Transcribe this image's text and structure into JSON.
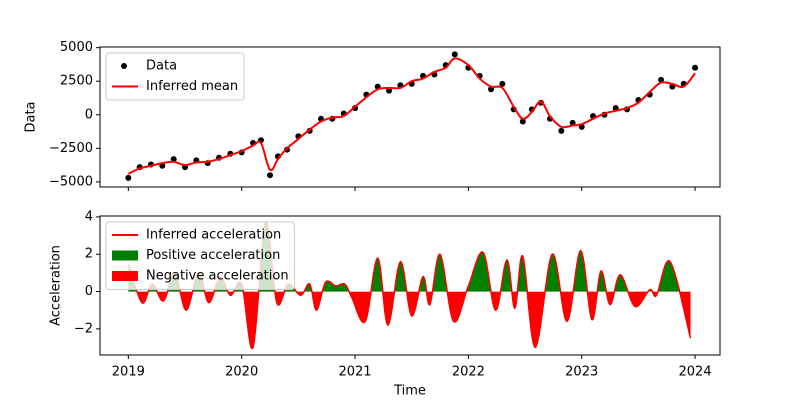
{
  "chart_data": [
    {
      "type": "line",
      "ylabel": "Data",
      "xlim": [
        2018.75,
        2024.22
      ],
      "xticks": [
        2019,
        2020,
        2021,
        2022,
        2023,
        2024
      ],
      "ylim": [
        -5380,
        5050
      ],
      "yticks": [
        5000,
        2500,
        0,
        {
          "value": -2500,
          "label": "−2500"
        },
        {
          "value": -5000,
          "label": "−5000"
        }
      ],
      "legend": "upper left",
      "series": [
        {
          "name": "Data",
          "color": "black",
          "mode": "markers",
          "x": [
            2019.0,
            2019.1,
            2019.2,
            2019.3,
            2019.4,
            2019.5,
            2019.6,
            2019.7,
            2019.8,
            2019.9,
            2020.0,
            2020.1,
            2020.17,
            2020.25,
            2020.32,
            2020.4,
            2020.5,
            2020.6,
            2020.7,
            2020.8,
            2020.9,
            2021.0,
            2021.1,
            2021.2,
            2021.3,
            2021.4,
            2021.5,
            2021.6,
            2021.7,
            2021.8,
            2021.88,
            2022.0,
            2022.1,
            2022.2,
            2022.3,
            2022.4,
            2022.48,
            2022.56,
            2022.64,
            2022.72,
            2022.82,
            2022.92,
            2023.0,
            2023.1,
            2023.2,
            2023.3,
            2023.4,
            2023.5,
            2023.6,
            2023.7,
            2023.8,
            2023.9,
            2024.0
          ],
          "values": [
            -4700,
            -3900,
            -3700,
            -3800,
            -3300,
            -3900,
            -3400,
            -3600,
            -3200,
            -2900,
            -2800,
            -2100,
            -1900,
            -4500,
            -3100,
            -2600,
            -1600,
            -1200,
            -300,
            -300,
            100,
            500,
            1500,
            2100,
            1800,
            2200,
            2300,
            2900,
            3000,
            3700,
            4500,
            3500,
            2900,
            1900,
            2300,
            400,
            -500,
            400,
            900,
            -300,
            -1200,
            -600,
            -900,
            -100,
            0,
            500,
            400,
            1100,
            1500,
            2600,
            2100,
            2300,
            3500
          ]
        },
        {
          "name": "Inferred mean",
          "color": "red",
          "mode": "line",
          "x": [
            2019.0,
            2019.1,
            2019.2,
            2019.3,
            2019.4,
            2019.5,
            2019.6,
            2019.7,
            2019.8,
            2019.9,
            2020.0,
            2020.1,
            2020.17,
            2020.25,
            2020.32,
            2020.4,
            2020.5,
            2020.6,
            2020.7,
            2020.8,
            2020.9,
            2021.0,
            2021.1,
            2021.2,
            2021.3,
            2021.4,
            2021.5,
            2021.6,
            2021.7,
            2021.8,
            2021.88,
            2022.0,
            2022.1,
            2022.2,
            2022.3,
            2022.4,
            2022.48,
            2022.56,
            2022.64,
            2022.72,
            2022.82,
            2022.92,
            2023.0,
            2023.1,
            2023.2,
            2023.3,
            2023.4,
            2023.5,
            2023.6,
            2023.7,
            2023.8,
            2023.9,
            2024.0
          ],
          "values": [
            -4400,
            -4000,
            -3800,
            -3600,
            -3500,
            -3750,
            -3550,
            -3500,
            -3300,
            -3000,
            -2700,
            -2300,
            -2100,
            -4100,
            -3300,
            -2500,
            -1800,
            -1100,
            -500,
            -200,
            -100,
            600,
            1300,
            1900,
            2000,
            2000,
            2500,
            2700,
            3200,
            3500,
            4200,
            3700,
            2700,
            2100,
            2000,
            600,
            -300,
            200,
            1000,
            -100,
            -900,
            -800,
            -700,
            -300,
            100,
            300,
            500,
            900,
            1700,
            2400,
            2300,
            2100,
            3100
          ]
        }
      ]
    },
    {
      "type": "area",
      "xlabel": "Time",
      "ylabel": "Acceleration",
      "xlim": [
        2018.75,
        2024.22
      ],
      "xticks": [
        2019,
        2020,
        2021,
        2022,
        2023,
        2024
      ],
      "ylim": [
        -3.4,
        4.05
      ],
      "yticks": [
        4,
        2,
        0,
        {
          "value": -2,
          "label": "−2"
        }
      ],
      "legend": "upper left",
      "series": [
        {
          "name": "Inferred acceleration",
          "color": "red",
          "x": [
            2019.0,
            2019.12,
            2019.21,
            2019.31,
            2019.41,
            2019.51,
            2019.62,
            2019.71,
            2019.81,
            2019.9,
            2020.0,
            2020.1,
            2020.21,
            2020.31,
            2020.41,
            2020.52,
            2020.6,
            2020.66,
            2020.74,
            2020.83,
            2020.91,
            2020.97,
            2021.09,
            2021.2,
            2021.29,
            2021.4,
            2021.5,
            2021.6,
            2021.66,
            2021.75,
            2021.87,
            2022.0,
            2022.13,
            2022.24,
            2022.34,
            2022.41,
            2022.48,
            2022.59,
            2022.74,
            2022.87,
            2022.99,
            2023.09,
            2023.17,
            2023.25,
            2023.34,
            2023.47,
            2023.6,
            2023.66,
            2023.78,
            2023.96
          ],
          "values": [
            1.5,
            -0.6,
            0.4,
            -0.5,
            1.0,
            -1.0,
            1.0,
            -0.6,
            0.8,
            -0.2,
            0.4,
            -3.0,
            3.7,
            -0.6,
            0.4,
            -0.2,
            0.4,
            -1.0,
            0.5,
            0.3,
            0.4,
            -0.3,
            -1.6,
            1.8,
            -1.8,
            1.6,
            -1.3,
            0.8,
            -0.7,
            2.0,
            -1.6,
            0.3,
            2.1,
            -1.0,
            1.7,
            -0.9,
            1.9,
            -3.0,
            2.0,
            -1.6,
            2.2,
            -1.5,
            1.1,
            -0.7,
            0.9,
            -0.8,
            0.1,
            -0.2,
            1.6,
            -2.5
          ]
        }
      ],
      "fills": [
        {
          "name": "Positive acceleration",
          "color": "green",
          "side": "positive"
        },
        {
          "name": "Negative acceleration",
          "color": "red",
          "side": "negative"
        }
      ]
    }
  ]
}
